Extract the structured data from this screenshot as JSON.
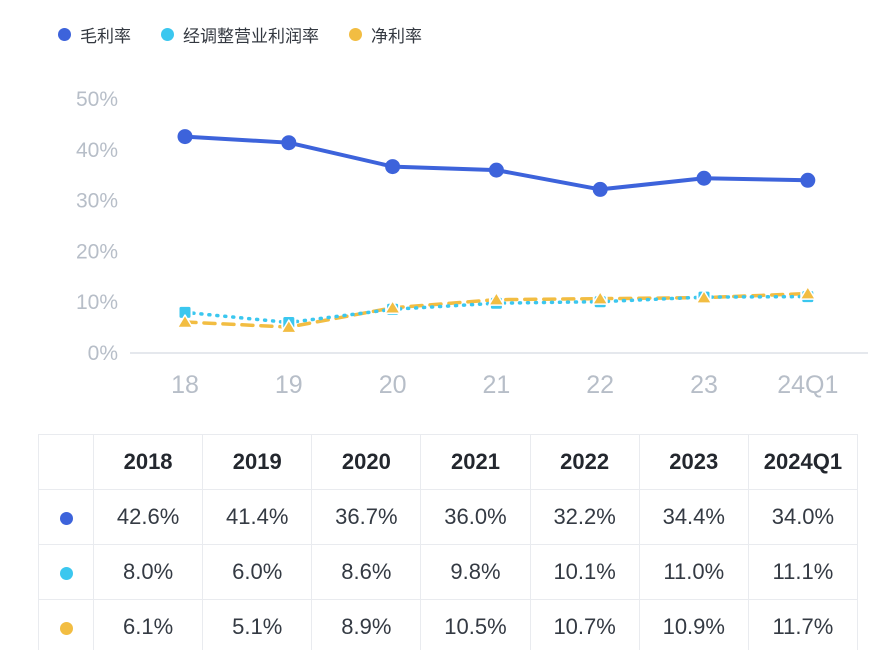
{
  "legend": {
    "items": [
      {
        "label": "毛利率",
        "color": "#3D63DB"
      },
      {
        "label": "经调整营业利润率",
        "color": "#3BC7EF"
      },
      {
        "label": "净利率",
        "color": "#F2BD42"
      }
    ]
  },
  "chart_data": {
    "type": "line",
    "x": [
      "18",
      "19",
      "20",
      "21",
      "22",
      "23",
      "24Q1"
    ],
    "series": [
      {
        "name": "毛利率",
        "color": "#3D63DB",
        "style": "solid",
        "marker": "circle",
        "values": [
          42.6,
          41.4,
          36.7,
          36.0,
          32.2,
          34.4,
          34.0
        ]
      },
      {
        "name": "经调整营业利润率",
        "color": "#3BC7EF",
        "style": "dotted",
        "marker": "square",
        "values": [
          8.0,
          6.0,
          8.6,
          9.8,
          10.1,
          11.0,
          11.1
        ]
      },
      {
        "name": "净利率",
        "color": "#F2BD42",
        "style": "dashed",
        "marker": "triangle",
        "values": [
          6.1,
          5.1,
          8.9,
          10.5,
          10.7,
          10.9,
          11.7
        ]
      }
    ],
    "ylim": [
      0,
      50
    ],
    "yticks": [
      "0%",
      "10%",
      "20%",
      "30%",
      "40%",
      "50%"
    ],
    "grid": false,
    "legend_position": "top-left",
    "axis_color": "#B7BEC8",
    "baseline_color": "#E5E8ED"
  },
  "table": {
    "headers": [
      "2018",
      "2019",
      "2020",
      "2021",
      "2022",
      "2023",
      "2024Q1"
    ],
    "rows": [
      {
        "series": "毛利率",
        "color": "#3D63DB",
        "values": [
          "42.6%",
          "41.4%",
          "36.7%",
          "36.0%",
          "32.2%",
          "34.4%",
          "34.0%"
        ]
      },
      {
        "series": "经调整营业利润率",
        "color": "#3BC7EF",
        "values": [
          "8.0%",
          "6.0%",
          "8.6%",
          "9.8%",
          "10.1%",
          "11.0%",
          "11.1%"
        ]
      },
      {
        "series": "净利率",
        "color": "#F2BD42",
        "values": [
          "6.1%",
          "5.1%",
          "8.9%",
          "10.5%",
          "10.7%",
          "10.9%",
          "11.7%"
        ]
      }
    ]
  }
}
